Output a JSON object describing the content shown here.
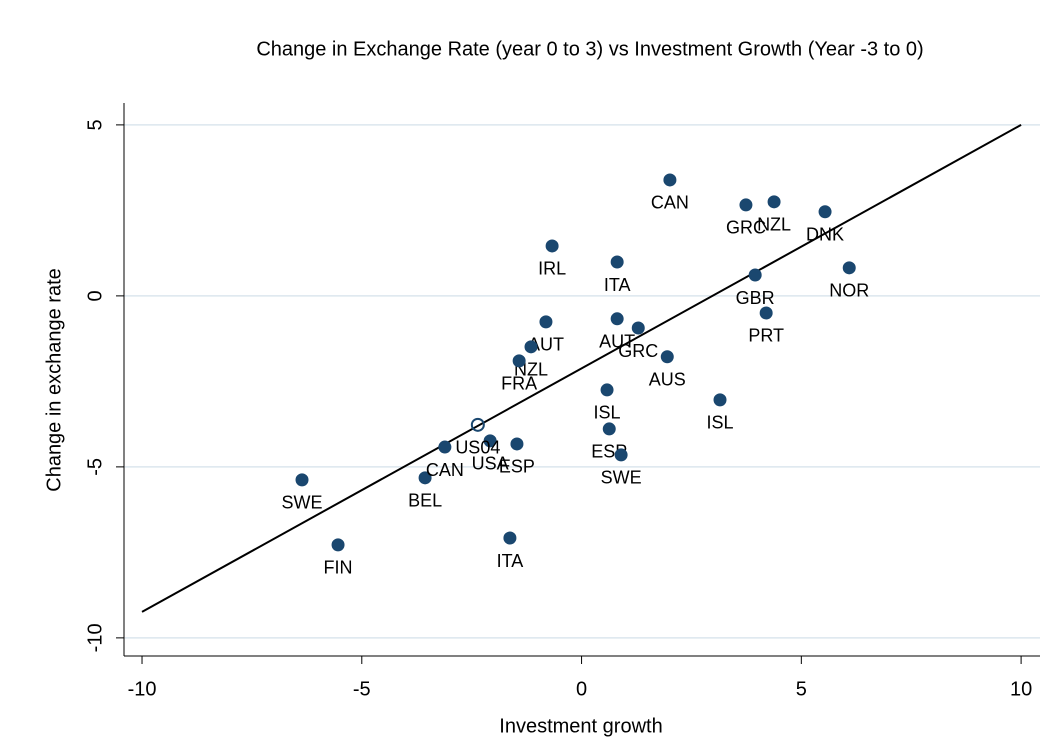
{
  "chart_data": {
    "type": "scatter",
    "title": "Change in Exchange Rate (year 0 to 3) vs Investment Growth (Year -3 to 0)",
    "x_label": "Investment growth",
    "y_label": "Change in exchange rate",
    "xlim": [
      -10.41,
      10.43
    ],
    "ylim": [
      -10.53,
      5.64
    ],
    "xticks": [
      -10,
      -5,
      0,
      5,
      10
    ],
    "yticks": [
      -10,
      -5,
      0,
      5
    ],
    "grid": true,
    "series": [
      {
        "color": "#1a476f",
        "marker": "filled",
        "labels": [
          "SWE",
          "FIN",
          "BEL",
          "CAN",
          "USA",
          "ESP",
          "ITA",
          "AUT",
          "NZL",
          "FRA",
          "IRL",
          "ITA",
          "CAN",
          "AUT",
          "GRC",
          "AUS",
          "ISL",
          "ESP",
          "SWE",
          "ISL",
          "GRC",
          "NZL",
          "DNK",
          "GBR",
          "PRT",
          "NOR"
        ],
        "x": [
          -6.36,
          -5.54,
          -3.56,
          -3.11,
          -2.08,
          -1.47,
          -1.63,
          -0.81,
          -1.15,
          -1.42,
          -0.67,
          0.81,
          2.01,
          0.81,
          1.29,
          1.95,
          0.58,
          0.63,
          0.9,
          3.15,
          3.74,
          4.38,
          5.54,
          3.95,
          4.2,
          6.09
        ],
        "y": [
          -5.38,
          -7.28,
          -5.32,
          -4.42,
          -4.24,
          -4.33,
          -7.08,
          -0.76,
          -1.49,
          -1.9,
          1.46,
          0.99,
          3.39,
          -0.67,
          -0.94,
          -1.78,
          -2.75,
          -3.89,
          -4.65,
          -3.04,
          2.66,
          2.75,
          2.46,
          0.61,
          -0.5,
          0.82
        ]
      },
      {
        "color": "#1a476f",
        "marker": "hollow",
        "labels": [
          "US04"
        ],
        "x": [
          -2.36
        ],
        "y": [
          -3.77
        ]
      }
    ],
    "fit_line": {
      "color": "#000000",
      "x": [
        -10,
        10
      ],
      "y": [
        -9.24,
        5.0
      ]
    }
  }
}
